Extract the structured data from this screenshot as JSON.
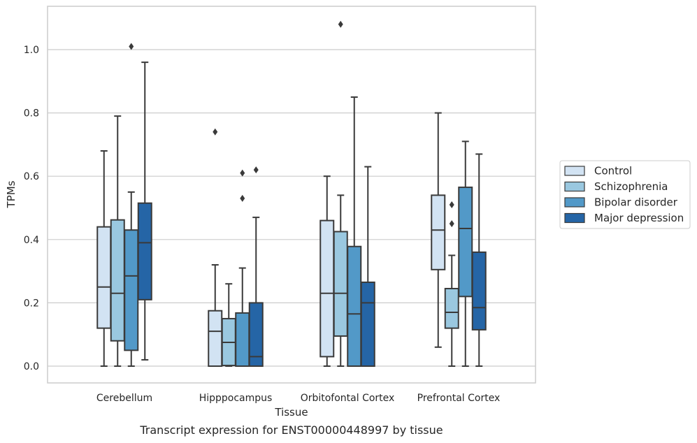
{
  "caption": "Transcript expression for ENST00000448997 by tissue",
  "chart_data": {
    "type": "boxplot",
    "title": "",
    "xlabel": "Tissue",
    "ylabel": "TPMs",
    "ylim": [
      -0.05,
      1.14
    ],
    "yticks": [
      0.0,
      0.2,
      0.4,
      0.6,
      0.8,
      1.0
    ],
    "ytick_labels": [
      "0.0",
      "0.2",
      "0.4",
      "0.6",
      "0.8",
      "1.0"
    ],
    "grid": true,
    "legend_position": "right",
    "categories": [
      "Cerebellum",
      "Hipppocampus",
      "Orbitofontal Cortex",
      "Prefrontal Cortex"
    ],
    "series": [
      {
        "name": "Control",
        "color": "#d2e3f3",
        "boxes": [
          {
            "whisker_low": 0.0,
            "q1": 0.12,
            "median": 0.25,
            "q3": 0.44,
            "whisker_high": 0.68,
            "outliers": []
          },
          {
            "whisker_low": 0.0,
            "q1": 0.0,
            "median": 0.11,
            "q3": 0.175,
            "whisker_high": 0.32,
            "outliers": [
              0.74
            ]
          },
          {
            "whisker_low": 0.0,
            "q1": 0.03,
            "median": 0.23,
            "q3": 0.46,
            "whisker_high": 0.6,
            "outliers": []
          },
          {
            "whisker_low": 0.06,
            "q1": 0.305,
            "median": 0.43,
            "q3": 0.54,
            "whisker_high": 0.8,
            "outliers": []
          }
        ]
      },
      {
        "name": "Schizophrenia",
        "color": "#9ac8e0",
        "boxes": [
          {
            "whisker_low": 0.0,
            "q1": 0.08,
            "median": 0.23,
            "q3": 0.462,
            "whisker_high": 0.79,
            "outliers": []
          },
          {
            "whisker_low": 0.0,
            "q1": 0.002,
            "median": 0.075,
            "q3": 0.15,
            "whisker_high": 0.26,
            "outliers": []
          },
          {
            "whisker_low": 0.0,
            "q1": 0.095,
            "median": 0.23,
            "q3": 0.425,
            "whisker_high": 0.54,
            "outliers": [
              1.08
            ]
          },
          {
            "whisker_low": 0.0,
            "q1": 0.12,
            "median": 0.17,
            "q3": 0.245,
            "whisker_high": 0.35,
            "outliers": [
              0.51,
              0.45
            ]
          }
        ]
      },
      {
        "name": "Bipolar disorder",
        "color": "#5299c8",
        "boxes": [
          {
            "whisker_low": 0.0,
            "q1": 0.05,
            "median": 0.285,
            "q3": 0.43,
            "whisker_high": 0.55,
            "outliers": [
              1.01
            ]
          },
          {
            "whisker_low": 0.0,
            "q1": 0.0,
            "median": 0.0,
            "q3": 0.168,
            "whisker_high": 0.31,
            "outliers": [
              0.53,
              0.61
            ]
          },
          {
            "whisker_low": 0.0,
            "q1": 0.0,
            "median": 0.165,
            "q3": 0.378,
            "whisker_high": 0.85,
            "outliers": []
          },
          {
            "whisker_low": 0.0,
            "q1": 0.22,
            "median": 0.435,
            "q3": 0.565,
            "whisker_high": 0.71,
            "outliers": []
          }
        ]
      },
      {
        "name": "Major depression",
        "color": "#2565a6",
        "boxes": [
          {
            "whisker_low": 0.02,
            "q1": 0.21,
            "median": 0.39,
            "q3": 0.515,
            "whisker_high": 0.96,
            "outliers": []
          },
          {
            "whisker_low": 0.0,
            "q1": 0.0,
            "median": 0.03,
            "q3": 0.2,
            "whisker_high": 0.47,
            "outliers": [
              0.62
            ]
          },
          {
            "whisker_low": 0.0,
            "q1": 0.0,
            "median": 0.2,
            "q3": 0.265,
            "whisker_high": 0.63,
            "outliers": []
          },
          {
            "whisker_low": 0.0,
            "q1": 0.115,
            "median": 0.185,
            "q3": 0.36,
            "whisker_high": 0.67,
            "outliers": []
          }
        ]
      }
    ]
  }
}
